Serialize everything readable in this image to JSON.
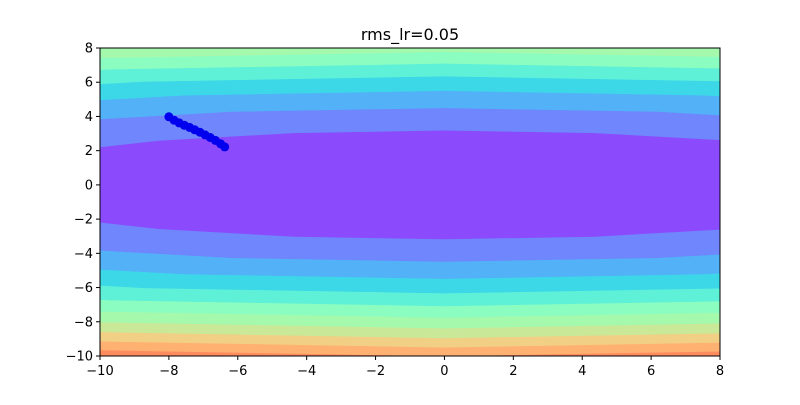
{
  "chart_data": {
    "type": "contour",
    "title": "rms_lr=0.05",
    "xlabel": "",
    "ylabel": "",
    "xlim": [
      -10,
      8
    ],
    "ylim": [
      -10,
      8
    ],
    "x_ticks": [
      -10,
      -8,
      -6,
      -4,
      -2,
      0,
      2,
      4,
      6,
      8
    ],
    "y_ticks": [
      -10,
      -8,
      -6,
      -4,
      -2,
      0,
      2,
      4,
      6,
      8
    ],
    "grid": false,
    "legend": "none",
    "contour": {
      "function": "x^2/20 + y^2",
      "colormap": "rainbow",
      "levels": [
        0,
        10,
        20,
        30,
        40,
        50,
        60,
        70,
        80,
        90,
        100,
        110
      ],
      "level_colors": [
        "#8b4bfd",
        "#6f86fc",
        "#53b1f8",
        "#3cd8e8",
        "#5ff1d7",
        "#8cfdc0",
        "#a4f9ac",
        "#c9e898",
        "#f1d085",
        "#ffb172",
        "#ff8c5e",
        "#ef5e43"
      ]
    },
    "series": [
      {
        "type": "scatter-line",
        "color": "#0000ee",
        "x": [
          -8.0,
          -7.85,
          -7.7,
          -7.55,
          -7.4,
          -7.25,
          -7.1,
          -6.95,
          -6.8,
          -6.65,
          -6.5,
          -6.38
        ],
        "y": [
          3.98,
          3.78,
          3.62,
          3.48,
          3.36,
          3.22,
          3.08,
          2.92,
          2.77,
          2.6,
          2.4,
          2.22
        ]
      }
    ]
  }
}
